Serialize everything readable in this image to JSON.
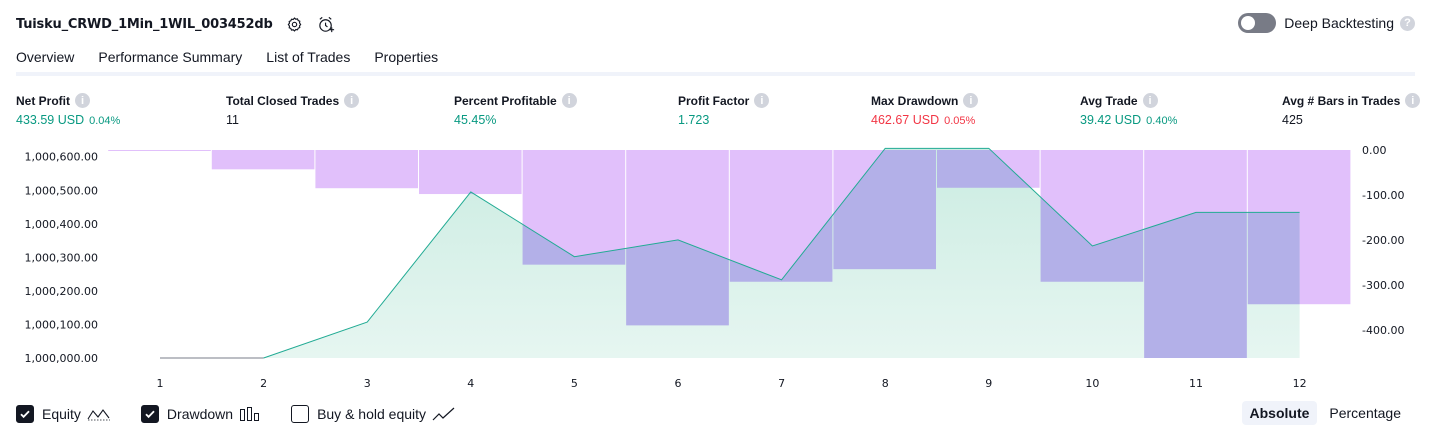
{
  "header": {
    "strategy_name": "Tuisku_CRWD_1Min_1WIL_003452db",
    "settings_icon": "gear-icon",
    "alert_icon": "add-alert-icon"
  },
  "deep_backtesting": {
    "label": "Deep Backtesting",
    "enabled": false,
    "help": "?"
  },
  "tabs": [
    {
      "label": "Overview",
      "active": true
    },
    {
      "label": "Performance Summary",
      "active": false
    },
    {
      "label": "List of Trades",
      "active": false
    },
    {
      "label": "Properties",
      "active": false
    }
  ],
  "metrics": {
    "help": "i",
    "net_profit": {
      "title": "Net Profit",
      "value": "433.59 USD",
      "pct": "0.04%"
    },
    "total_closed_trades": {
      "title": "Total Closed Trades",
      "value": "11"
    },
    "percent_profitable": {
      "title": "Percent Profitable",
      "value": "45.45%"
    },
    "profit_factor": {
      "title": "Profit Factor",
      "value": "1.723"
    },
    "max_drawdown": {
      "title": "Max Drawdown",
      "value": "462.67 USD",
      "pct": "0.05%"
    },
    "avg_trade": {
      "title": "Avg Trade",
      "value": "39.42 USD",
      "pct": "0.40%"
    },
    "avg_bars": {
      "title": "Avg # Bars in Trades",
      "value": "425"
    }
  },
  "chart_data": {
    "type": "area",
    "x": [
      1,
      2,
      3,
      4,
      5,
      6,
      7,
      8,
      9,
      10,
      11,
      12
    ],
    "x_tick_labels": [
      "1",
      "2",
      "3",
      "4",
      "5",
      "6",
      "7",
      "8",
      "9",
      "10",
      "11",
      "12"
    ],
    "y_left": {
      "ticks": [
        1000000,
        1000100,
        1000200,
        1000300,
        1000400,
        1000500,
        1000600
      ],
      "tick_labels": [
        "1,000,000.00",
        "1,000,100.00",
        "1,000,200.00",
        "1,000,300.00",
        "1,000,400.00",
        "1,000,500.00",
        "1,000,600.00"
      ],
      "range": [
        1000000,
        1000620
      ]
    },
    "y_right": {
      "ticks": [
        0,
        -100,
        -200,
        -300,
        -400
      ],
      "tick_labels": [
        "0.00",
        "-100.00",
        "-200.00",
        "-300.00",
        "-400.00"
      ],
      "range": [
        -462.67,
        0
      ]
    },
    "equity": [
      1000000,
      1000000,
      1000107,
      1000495,
      1000302,
      1000352,
      1000233,
      1000625,
      1000625,
      1000334,
      1000434,
      1000434
    ],
    "drawdown": [
      -2,
      -43,
      -85,
      -98,
      -255,
      -390,
      -293,
      -265,
      -84,
      -293,
      -462.67,
      -343
    ],
    "colors": {
      "equity_line": "#22ab94",
      "equity_fill": "#c8ebe0",
      "drawdown_bar": "#e1c0fb",
      "overlap": "#b3b0e8"
    }
  },
  "legend": {
    "equity": {
      "label": "Equity",
      "checked": true
    },
    "drawdown": {
      "label": "Drawdown",
      "checked": true
    },
    "buy_hold": {
      "label": "Buy & hold equity",
      "checked": false
    }
  },
  "modes": {
    "absolute": "Absolute",
    "percentage": "Percentage",
    "selected": "absolute"
  }
}
